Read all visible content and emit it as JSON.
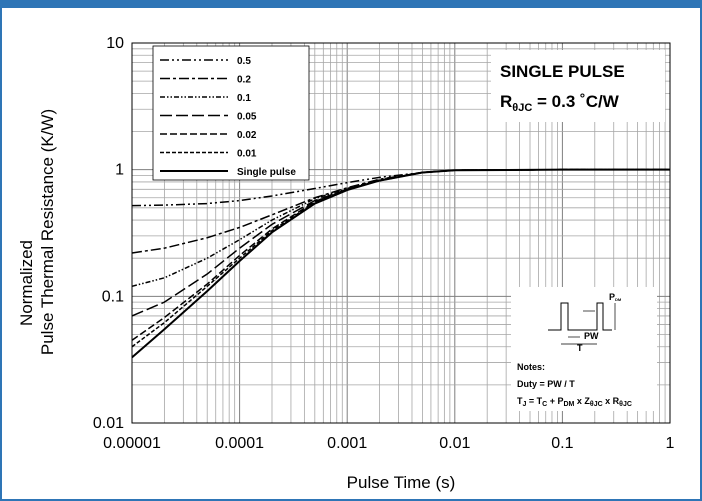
{
  "chart_data": {
    "type": "line",
    "x_scale": "log",
    "y_scale": "log",
    "xlim": [
      1e-05,
      1
    ],
    "ylim": [
      0.01,
      10
    ],
    "grid": true,
    "xlabel": "Pulse Time (s)",
    "ylabel_line1": "Normalized",
    "ylabel_line2": "Pulse Thermal Resistance (K/W)",
    "x_tick_labels": [
      "0.00001",
      "0.0001",
      "0.001",
      "0.01",
      "0.1",
      "1"
    ],
    "x_tick_values": [
      1e-05,
      0.0001,
      0.001,
      0.01,
      0.1,
      1
    ],
    "y_tick_labels": [
      "0.01",
      "0.1",
      "1",
      "10"
    ],
    "y_tick_values": [
      0.01,
      0.1,
      1,
      10
    ],
    "legend_position": "top-left",
    "series": [
      {
        "name": "0.5",
        "dash": "dash-dot-dot",
        "x": [
          1e-05,
          2e-05,
          5e-05,
          0.0001,
          0.0002,
          0.0005,
          0.001,
          0.002,
          0.005,
          0.01,
          0.1,
          1
        ],
        "y": [
          0.52,
          0.525,
          0.54,
          0.57,
          0.62,
          0.71,
          0.79,
          0.87,
          0.95,
          0.99,
          1.0,
          1.0
        ]
      },
      {
        "name": "0.2",
        "dash": "dash-dot",
        "x": [
          1e-05,
          2e-05,
          5e-05,
          0.0001,
          0.0002,
          0.0005,
          0.001,
          0.002,
          0.005,
          0.01,
          0.1,
          1
        ],
        "y": [
          0.22,
          0.24,
          0.29,
          0.35,
          0.44,
          0.6,
          0.72,
          0.84,
          0.95,
          0.99,
          1.0,
          1.0
        ]
      },
      {
        "name": "0.1",
        "dash": "dash-dot-dot-short",
        "x": [
          1e-05,
          2e-05,
          5e-05,
          0.0001,
          0.0002,
          0.0005,
          0.001,
          0.002,
          0.005,
          0.01,
          0.1,
          1
        ],
        "y": [
          0.12,
          0.14,
          0.2,
          0.28,
          0.4,
          0.59,
          0.71,
          0.83,
          0.95,
          0.99,
          1.0,
          1.0
        ]
      },
      {
        "name": "0.05",
        "dash": "long-dash",
        "x": [
          1e-05,
          2e-05,
          5e-05,
          0.0001,
          0.0002,
          0.0005,
          0.001,
          0.002,
          0.005,
          0.01,
          0.1,
          1
        ],
        "y": [
          0.07,
          0.09,
          0.15,
          0.24,
          0.37,
          0.57,
          0.7,
          0.82,
          0.95,
          0.99,
          1.0,
          1.0
        ]
      },
      {
        "name": "0.02",
        "dash": "dash",
        "x": [
          1e-05,
          2e-05,
          5e-05,
          0.0001,
          0.0002,
          0.0005,
          0.001,
          0.002,
          0.005,
          0.01,
          0.1,
          1
        ],
        "y": [
          0.045,
          0.068,
          0.125,
          0.21,
          0.34,
          0.56,
          0.7,
          0.82,
          0.95,
          0.99,
          1.0,
          1.0
        ]
      },
      {
        "name": "0.01",
        "dash": "short-dash",
        "x": [
          1e-05,
          2e-05,
          5e-05,
          0.0001,
          0.0002,
          0.0005,
          0.001,
          0.002,
          0.005,
          0.01,
          0.1,
          1
        ],
        "y": [
          0.04,
          0.062,
          0.12,
          0.2,
          0.33,
          0.55,
          0.7,
          0.82,
          0.95,
          0.99,
          1.0,
          1.0
        ]
      },
      {
        "name": "Single pulse",
        "dash": "solid",
        "x": [
          1e-05,
          2e-05,
          5e-05,
          0.0001,
          0.0002,
          0.0005,
          0.001,
          0.002,
          0.005,
          0.01,
          0.1,
          1
        ],
        "y": [
          0.033,
          0.055,
          0.11,
          0.19,
          0.32,
          0.54,
          0.69,
          0.82,
          0.95,
          0.99,
          1.0,
          1.0
        ]
      }
    ]
  },
  "info_box": {
    "title": "SINGLE PULSE",
    "r_label": "R",
    "r_sub": "θJC",
    "r_value": " = 0.3 ˚C/W"
  },
  "notes": {
    "heading": "Notes:",
    "duty": "Duty = PW / T",
    "formula_tj": "T",
    "formula_tj_sub": "J",
    "formula_p1": " = T",
    "formula_p1_sub": "C",
    "formula_p2": " + P",
    "formula_p2_sub": "DM",
    "formula_p3": " x Z",
    "formula_p3_sub": "θJC",
    "formula_p4": " x R",
    "formula_p4_sub": "θJC",
    "diagram_pw": "PW",
    "diagram_t": "T",
    "diagram_pdm": "P",
    "diagram_pdm_sub": "DM"
  },
  "colors": {
    "frame": "#2e75b6",
    "grid_major": "#7f7f7f",
    "grid_minor": "#a6a6a6",
    "line": "#000000"
  }
}
